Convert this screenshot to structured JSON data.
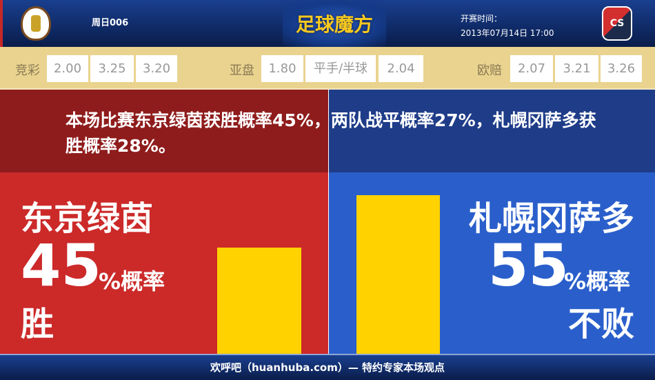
{
  "header": {
    "match_no": "周日006",
    "brand": "足球魔方",
    "kickoff_label": "开赛时间：",
    "kickoff_time": "2013年07月14日 17:00",
    "away_crest_text": "CS"
  },
  "odds": {
    "jingcai": {
      "label": "竞彩",
      "values": [
        "2.00",
        "3.25",
        "3.20"
      ]
    },
    "yapan": {
      "label": "亚盘",
      "values": [
        "1.80",
        "平手/半球",
        "2.04"
      ]
    },
    "oupei": {
      "label": "欧赔",
      "values": [
        "2.07",
        "3.21",
        "3.26"
      ]
    }
  },
  "summary": "本场比赛东京绿茵获胜概率45%，两队战平概率27%，札幌冈萨多获胜概率28%。",
  "home": {
    "name": "东京绿茵",
    "percent": "45",
    "percent_suffix": "%概率",
    "outcome": "胜",
    "bar_value": 45
  },
  "away": {
    "name": "札幌冈萨多",
    "percent": "55",
    "percent_suffix": "%概率",
    "outcome": "不败",
    "bar_value": 55
  },
  "colors": {
    "home": "#cc2929",
    "away": "#2a5fcb",
    "bar": "#ffd200"
  },
  "footer": "欢呼吧（huanhuba.com）— 特约专家本场观点"
}
